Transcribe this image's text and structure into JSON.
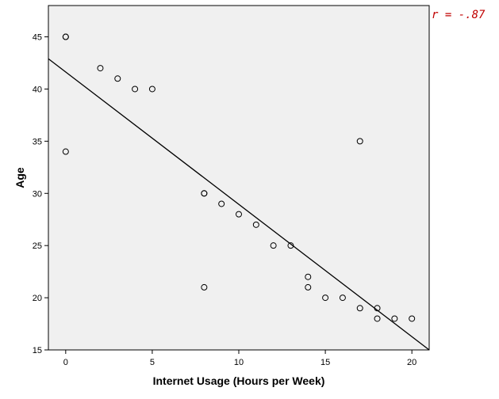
{
  "chart_data": {
    "type": "scatter",
    "xlabel": "Internet Usage (Hours per Week)",
    "ylabel": "Age",
    "xlim": [
      -1,
      21
    ],
    "ylim": [
      15,
      48
    ],
    "xticks": [
      0,
      5,
      10,
      15,
      20
    ],
    "yticks": [
      15,
      20,
      25,
      30,
      35,
      40,
      45
    ],
    "grid": false,
    "annotation": "r = -.87",
    "annotation_color": "#c00000",
    "plot_background": "#f0f0f0",
    "points": [
      {
        "x": 0,
        "y": 45
      },
      {
        "x": 0,
        "y": 45
      },
      {
        "x": 0,
        "y": 34
      },
      {
        "x": 2,
        "y": 42
      },
      {
        "x": 3,
        "y": 41
      },
      {
        "x": 4,
        "y": 40
      },
      {
        "x": 5,
        "y": 40
      },
      {
        "x": 8,
        "y": 30
      },
      {
        "x": 8,
        "y": 30
      },
      {
        "x": 8,
        "y": 21
      },
      {
        "x": 9,
        "y": 29
      },
      {
        "x": 10,
        "y": 28
      },
      {
        "x": 11,
        "y": 27
      },
      {
        "x": 12,
        "y": 25
      },
      {
        "x": 13,
        "y": 25
      },
      {
        "x": 14,
        "y": 22
      },
      {
        "x": 14,
        "y": 21
      },
      {
        "x": 15,
        "y": 20
      },
      {
        "x": 16,
        "y": 20
      },
      {
        "x": 17,
        "y": 35
      },
      {
        "x": 17,
        "y": 19
      },
      {
        "x": 18,
        "y": 19
      },
      {
        "x": 18,
        "y": 18
      },
      {
        "x": 19,
        "y": 18
      },
      {
        "x": 20,
        "y": 18
      }
    ],
    "fit_line": {
      "x": [
        -1,
        21
      ],
      "y": [
        42.9,
        15
      ]
    }
  }
}
